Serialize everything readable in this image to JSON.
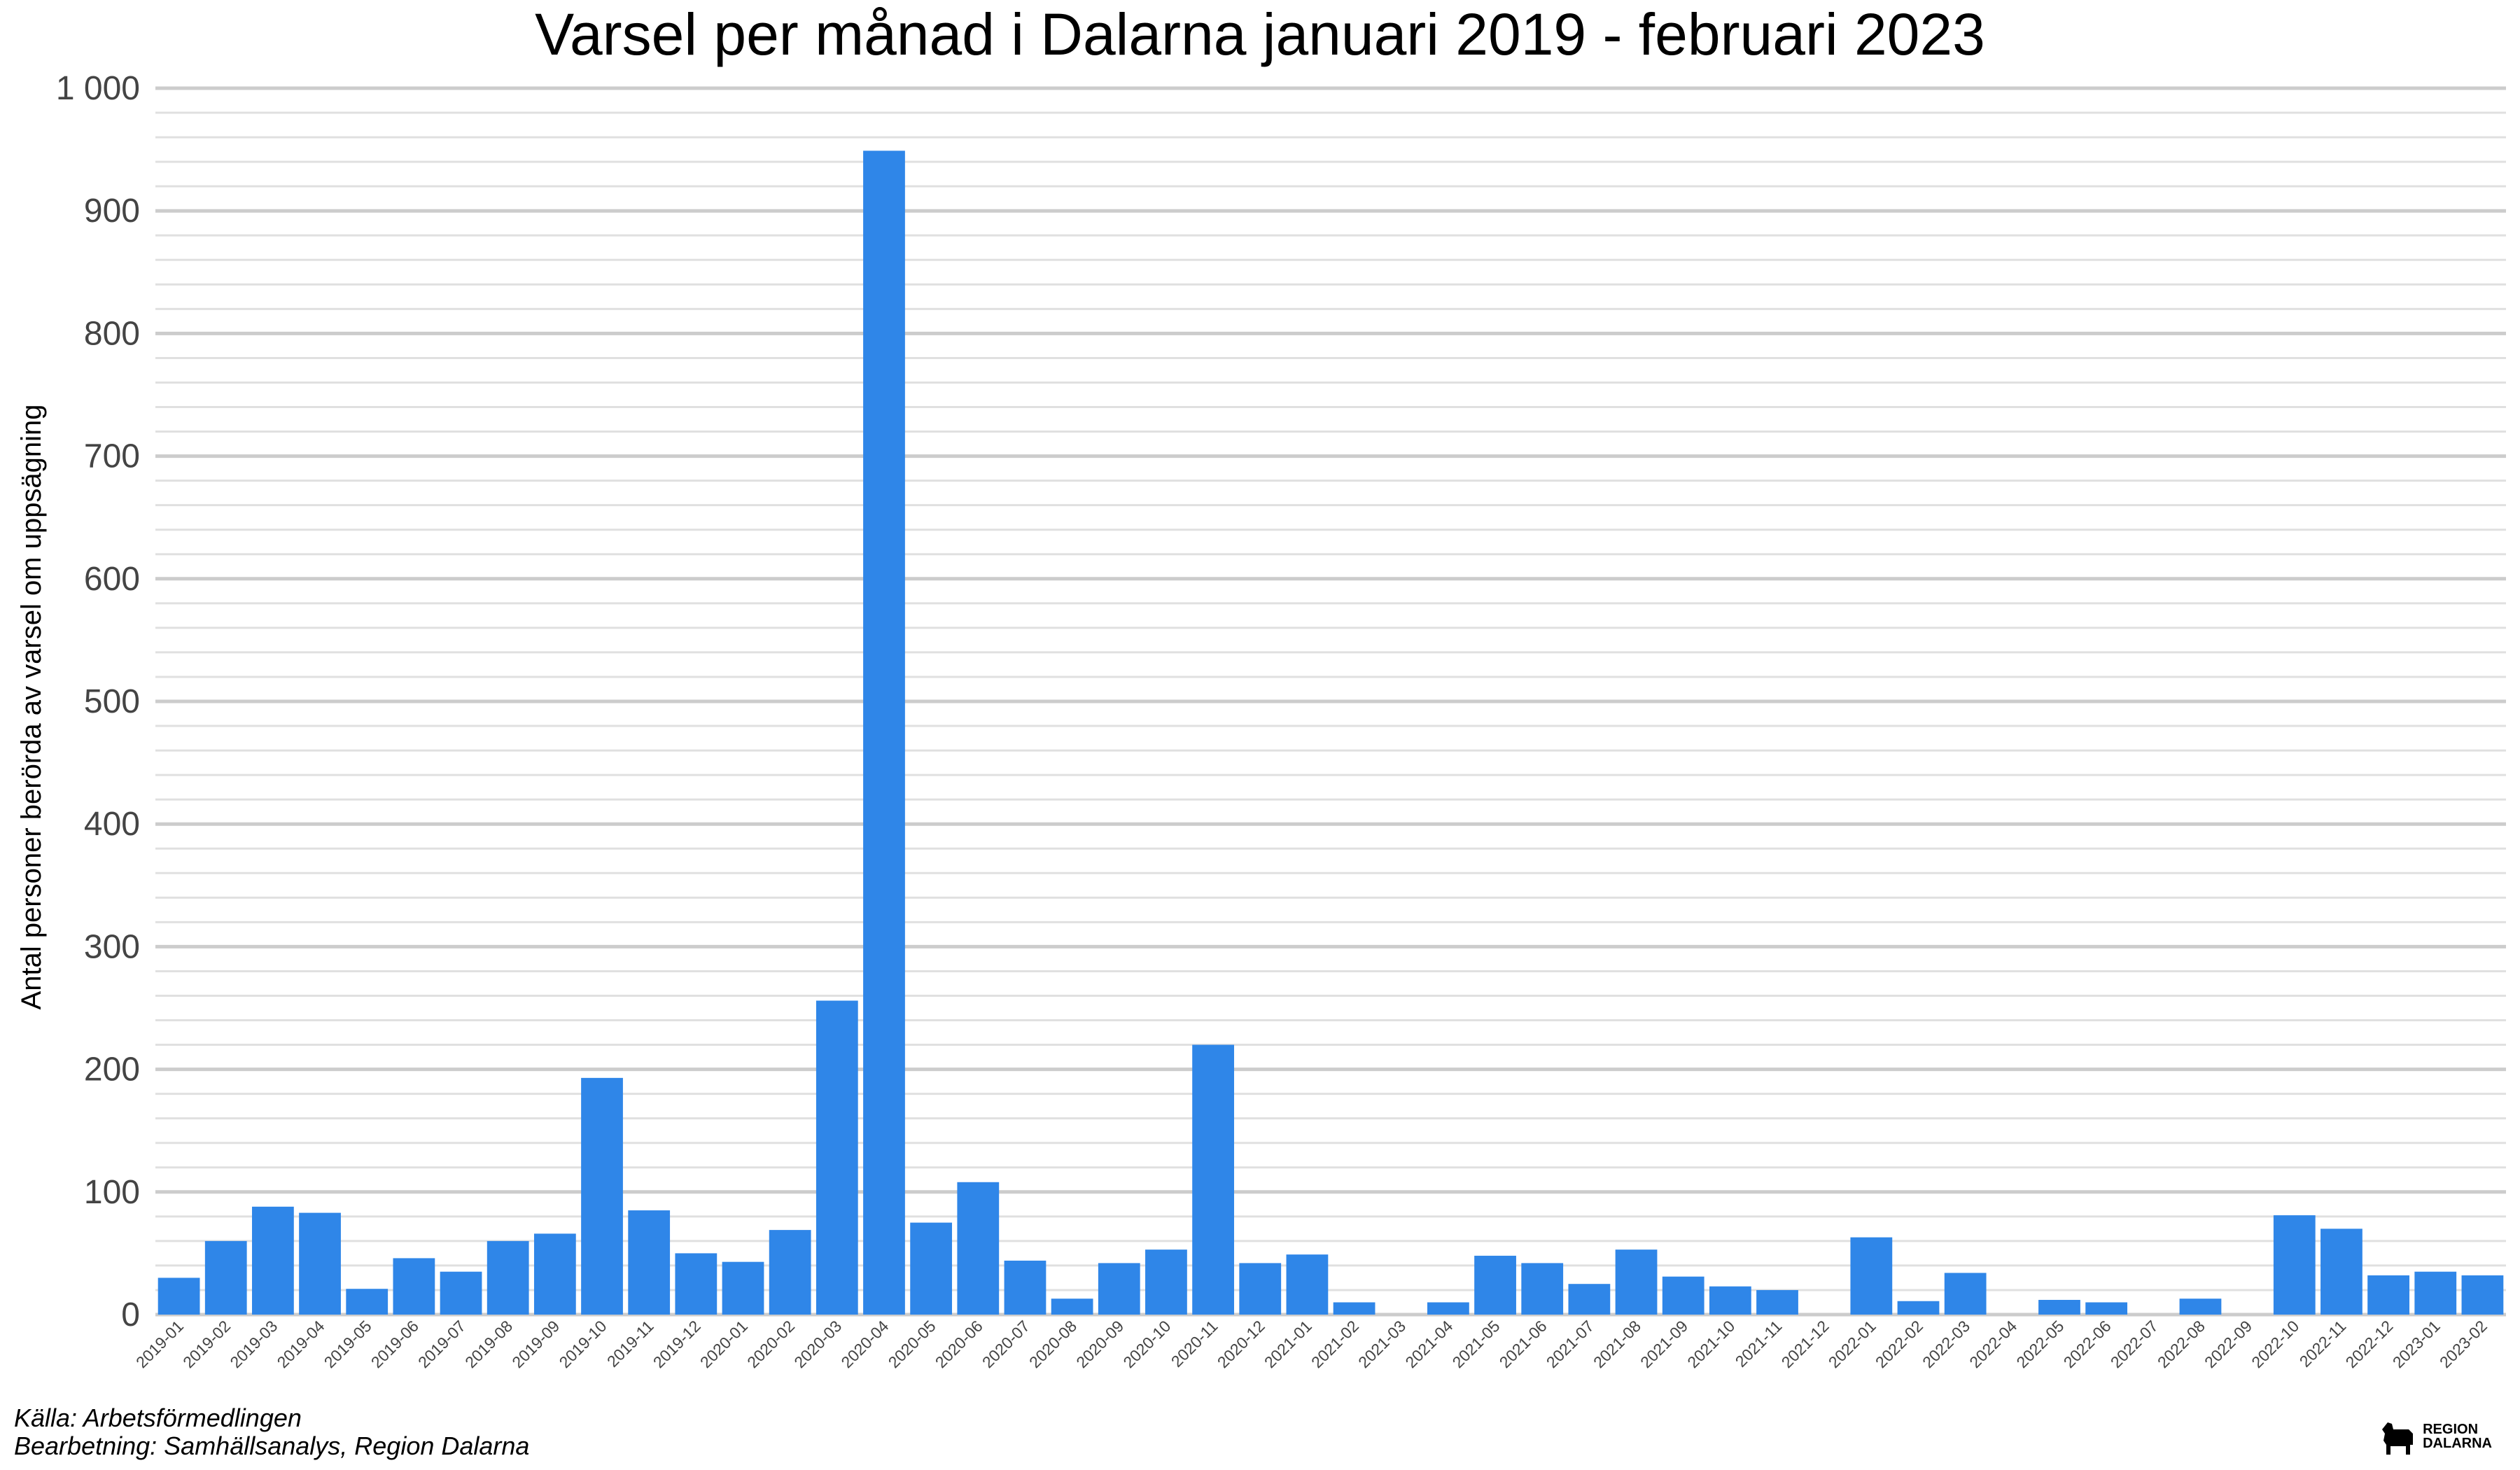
{
  "colors": {
    "bar": "#2f86e8",
    "grid_major": "#cccccc",
    "grid_minor": "#e0e0e0"
  },
  "captions": {
    "source": "Källa: Arbetsförmedlingen",
    "processing": "Bearbetning: Samhällsanalys, Region Dalarna"
  },
  "logo": {
    "text_line1": "REGION",
    "text_line2": "DALARNA",
    "icon": "dala-horse-icon"
  },
  "chart_data": {
    "type": "bar",
    "title": "Varsel per månad i Dalarna januari 2019 - februari 2023",
    "xlabel": "",
    "ylabel": "Antal personer berörda av varsel om uppsägning",
    "ylim": [
      0,
      1000
    ],
    "yticks": [
      0,
      100,
      200,
      300,
      400,
      500,
      600,
      700,
      800,
      900,
      1000
    ],
    "ytick_labels": [
      "0",
      "100",
      "200",
      "300",
      "400",
      "500",
      "600",
      "700",
      "800",
      "900",
      "1 000"
    ],
    "grid": true,
    "categories": [
      "2019-01",
      "2019-02",
      "2019-03",
      "2019-04",
      "2019-05",
      "2019-06",
      "2019-07",
      "2019-08",
      "2019-09",
      "2019-10",
      "2019-11",
      "2019-12",
      "2020-01",
      "2020-02",
      "2020-03",
      "2020-04",
      "2020-05",
      "2020-06",
      "2020-07",
      "2020-08",
      "2020-09",
      "2020-10",
      "2020-11",
      "2020-12",
      "2021-01",
      "2021-02",
      "2021-03",
      "2021-04",
      "2021-05",
      "2021-06",
      "2021-07",
      "2021-08",
      "2021-09",
      "2021-10",
      "2021-11",
      "2021-12",
      "2022-01",
      "2022-02",
      "2022-03",
      "2022-04",
      "2022-05",
      "2022-06",
      "2022-07",
      "2022-08",
      "2022-09",
      "2022-10",
      "2022-11",
      "2022-12",
      "2023-01",
      "2023-02"
    ],
    "values": [
      30,
      60,
      88,
      83,
      21,
      46,
      35,
      60,
      66,
      193,
      85,
      50,
      43,
      69,
      256,
      949,
      75,
      108,
      44,
      13,
      42,
      53,
      220,
      42,
      49,
      10,
      0,
      10,
      48,
      42,
      25,
      53,
      31,
      23,
      20,
      0,
      63,
      11,
      34,
      0,
      12,
      10,
      0,
      13,
      0,
      81,
      70,
      32,
      35,
      32
    ]
  }
}
